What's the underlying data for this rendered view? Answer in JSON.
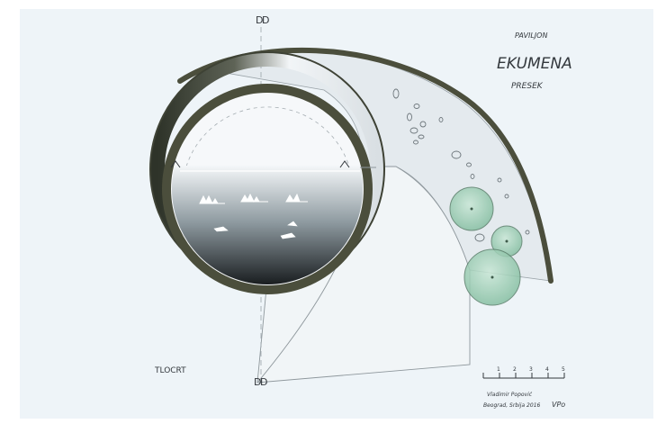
{
  "title_block": {
    "line1": "PAVILJON",
    "line2": "EKUMENA",
    "line3": "PRESEK"
  },
  "markers": {
    "top": "D",
    "bottom": "D"
  },
  "label_left": "TLOCRT",
  "scale_bar": {
    "ticks": [
      "1",
      "2",
      "3",
      "4",
      "5"
    ]
  },
  "author": {
    "line1": "Vladimir Popović",
    "line2": "Beograd, Srbija 2016"
  },
  "signature": "VPo",
  "colors": {
    "background": "#eef4f8",
    "ring_dark": "#4b4e3c",
    "ring_light": "#f3f6f8",
    "green": "#8fc8ab",
    "ink": "#33383d"
  }
}
